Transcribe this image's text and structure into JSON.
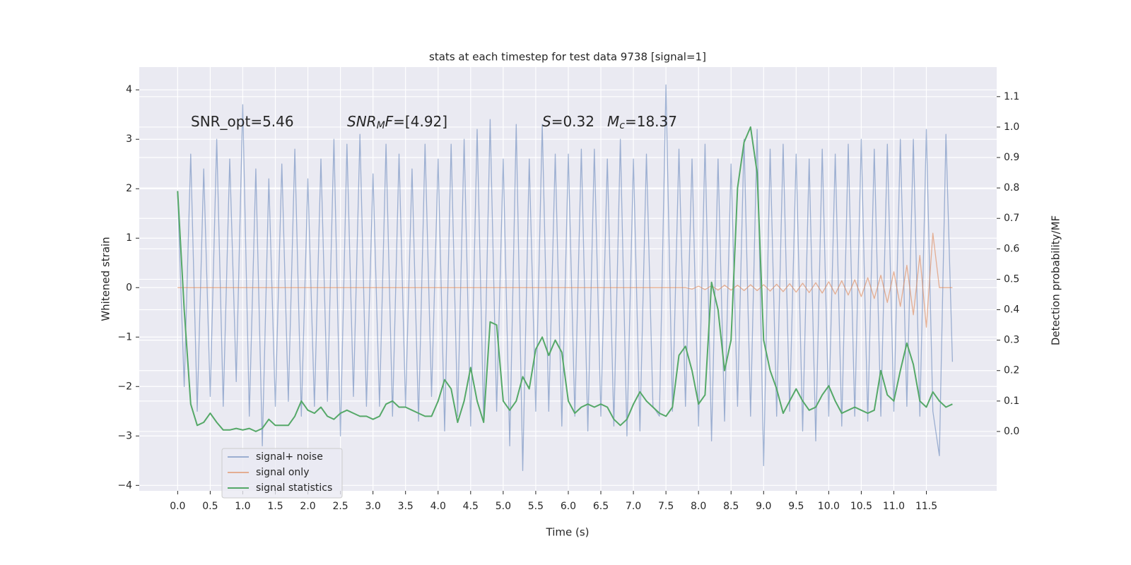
{
  "chart_data": {
    "type": "line",
    "title": "stats at each timestep for test data 9738 [signal=1]",
    "xlabel": "Time (s)",
    "ylabel": "Whitened strain",
    "y2label": "Detection probability/MF",
    "annotations": [
      [
        {
          "text": "SNR_opt=5.46",
          "style": "normal"
        }
      ],
      [
        {
          "text": "SNR",
          "style": "italic"
        },
        {
          "text": "M",
          "style": "sub"
        },
        {
          "text": "F",
          "style": "italic"
        },
        {
          "text": "=[4.92]",
          "style": "normal"
        }
      ],
      [
        {
          "text": "S",
          "style": "italic"
        },
        {
          "text": "=0.32",
          "style": "normal"
        }
      ],
      [
        {
          "text": "M",
          "style": "italic"
        },
        {
          "text": "c",
          "style": "sub"
        },
        {
          "text": "=18.37",
          "style": "normal"
        }
      ]
    ],
    "grid": true,
    "legend": "lower left",
    "xlim": [
      -0.59,
      12.58
    ],
    "ylim": [
      -4.11,
      4.46
    ],
    "y2lim": [
      -0.195,
      1.197
    ],
    "xticks": [
      {
        "value": 0,
        "label": "0.0"
      },
      0.5,
      {
        "value": 1,
        "label": "1.0"
      },
      1.5,
      {
        "value": 2,
        "label": "2.0"
      },
      2.5,
      {
        "value": 3,
        "label": "3.0"
      },
      3.5,
      {
        "value": 4,
        "label": "4.0"
      },
      4.5,
      {
        "value": 5,
        "label": "5.0"
      },
      5.5,
      {
        "value": 6,
        "label": "6.0"
      },
      6.5,
      {
        "value": 7,
        "label": "7.0"
      },
      7.5,
      {
        "value": 8,
        "label": "8.0"
      },
      8.5,
      {
        "value": 9,
        "label": "9.0"
      },
      9.5,
      {
        "value": 10,
        "label": "10.0"
      },
      10.5,
      {
        "value": 11,
        "label": "11.0"
      },
      11.5
    ],
    "yticks": [
      {
        "value": -4,
        "label": "−4"
      },
      {
        "value": -3,
        "label": "−3"
      },
      {
        "value": -2,
        "label": "−2"
      },
      {
        "value": -1,
        "label": "−1"
      },
      0,
      1,
      2,
      3,
      4
    ],
    "y2ticks": [
      {
        "value": 0,
        "label": "0.0"
      },
      0.1,
      0.2,
      0.3,
      0.4,
      0.5,
      0.6,
      0.7,
      0.8,
      0.9,
      {
        "value": 1,
        "label": "1.0"
      },
      1.1
    ],
    "x": [
      0,
      0.1,
      0.2,
      0.3,
      0.4,
      0.5,
      0.6,
      0.7,
      0.8,
      0.9,
      1,
      1.1,
      1.2,
      1.3,
      1.4,
      1.5,
      1.6,
      1.7,
      1.8,
      1.9,
      2,
      2.1,
      2.2,
      2.3,
      2.4,
      2.5,
      2.6,
      2.7,
      2.8,
      2.9,
      3,
      3.1,
      3.2,
      3.3,
      3.4,
      3.5,
      3.6,
      3.7,
      3.8,
      3.9,
      4,
      4.1,
      4.2,
      4.3,
      4.4,
      4.5,
      4.6,
      4.7,
      4.8,
      4.9,
      5,
      5.1,
      5.2,
      5.3,
      5.4,
      5.5,
      5.6,
      5.7,
      5.8,
      5.9,
      6,
      6.1,
      6.2,
      6.3,
      6.4,
      6.5,
      6.6,
      6.7,
      6.8,
      6.9,
      7,
      7.1,
      7.2,
      7.3,
      7.4,
      7.5,
      7.6,
      7.7,
      7.8,
      7.9,
      8,
      8.1,
      8.2,
      8.3,
      8.4,
      8.5,
      8.6,
      8.7,
      8.8,
      8.9,
      9,
      9.1,
      9.2,
      9.3,
      9.4,
      9.5,
      9.6,
      9.7,
      9.8,
      9.9,
      10,
      10.1,
      10.2,
      10.3,
      10.4,
      10.5,
      10.6,
      10.7,
      10.8,
      10.9,
      11,
      11.1,
      11.2,
      11.3,
      11.4,
      11.5,
      11.6,
      11.7,
      11.8,
      11.9
    ],
    "series": [
      {
        "name": "signal+ noise",
        "color": "#4c72b0",
        "opacity": 0.5,
        "values": [
          1.9,
          -2.0,
          2.7,
          -2.5,
          2.4,
          -2.2,
          3.0,
          -2.4,
          2.6,
          -1.9,
          3.7,
          -2.6,
          2.4,
          -3.2,
          2.2,
          -2.4,
          2.5,
          -2.3,
          2.8,
          -2.6,
          2.2,
          -2.4,
          2.6,
          -2.3,
          3.0,
          -3.0,
          2.9,
          -2.2,
          3.1,
          -2.4,
          2.3,
          -2.4,
          2.9,
          -2.6,
          2.7,
          -2.4,
          2.4,
          -2.7,
          2.9,
          -2.2,
          2.6,
          -2.9,
          2.9,
          -2.6,
          3.0,
          -2.8,
          3.2,
          -2.7,
          3.4,
          -2.5,
          2.6,
          -3.2,
          3.3,
          -3.7,
          2.6,
          -2.5,
          3.3,
          -2.5,
          2.7,
          -2.8,
          2.7,
          -2.6,
          2.8,
          -2.9,
          2.8,
          -2.6,
          2.6,
          -2.8,
          3.0,
          -3.0,
          2.6,
          -2.9,
          2.7,
          -2.4,
          -2.6,
          4.1,
          -2.5,
          2.8,
          -2.4,
          2.6,
          -2.8,
          2.9,
          -3.1,
          2.6,
          -2.7,
          2.5,
          -2.4,
          3.0,
          -2.6,
          3.2,
          -3.6,
          2.8,
          -2.6,
          2.9,
          -2.5,
          2.7,
          -2.9,
          2.6,
          -3.1,
          2.8,
          -2.6,
          2.7,
          -2.8,
          2.9,
          -2.6,
          3.0,
          -2.7,
          2.8,
          -2.6,
          2.9,
          -2.5,
          3.0,
          -2.4,
          3.0,
          -2.6,
          3.2,
          -2.5,
          -3.4,
          3.1,
          -1.5
        ]
      },
      {
        "name": "signal only",
        "color": "#dd8452",
        "opacity": 0.6,
        "values": [
          0,
          0,
          0,
          0,
          0,
          0,
          0,
          0,
          0,
          0,
          0,
          0,
          0,
          0,
          0,
          0,
          0,
          0,
          0,
          0,
          0,
          0,
          0,
          0,
          0,
          0,
          0,
          0,
          0,
          0,
          0,
          0,
          0,
          0,
          0,
          0,
          0,
          0,
          0,
          0,
          0,
          0,
          0,
          0,
          0,
          0,
          0,
          0,
          0,
          0,
          0,
          0,
          0,
          0,
          0,
          0,
          0,
          0,
          0,
          0,
          0,
          0,
          0,
          0,
          0,
          0,
          0,
          0,
          0,
          0,
          0,
          0,
          0,
          0,
          0,
          0,
          0,
          0,
          0,
          -0.03,
          0.03,
          -0.04,
          0.04,
          -0.05,
          0.05,
          -0.05,
          0.05,
          -0.06,
          0.06,
          -0.06,
          0.06,
          -0.07,
          0.07,
          -0.08,
          0.08,
          -0.09,
          0.09,
          -0.1,
          0.1,
          -0.11,
          0.12,
          -0.13,
          0.14,
          -0.15,
          0.16,
          -0.18,
          0.2,
          -0.22,
          0.25,
          -0.3,
          0.32,
          -0.38,
          0.45,
          -0.55,
          0.65,
          -0.8,
          1.1,
          0,
          0,
          0
        ]
      },
      {
        "name": "signal statistics",
        "color": "#55a868",
        "opacity": 1,
        "axis": "y2",
        "values": [
          0.79,
          0.4,
          0.09,
          0.02,
          0.03,
          0.06,
          0.03,
          0.005,
          0.005,
          0.01,
          0.005,
          0.01,
          0,
          0.01,
          0.04,
          0.02,
          0.02,
          0.02,
          0.05,
          0.1,
          0.07,
          0.06,
          0.08,
          0.05,
          0.04,
          0.06,
          0.07,
          0.06,
          0.05,
          0.05,
          0.04,
          0.05,
          0.09,
          0.1,
          0.08,
          0.08,
          0.07,
          0.06,
          0.05,
          0.05,
          0.1,
          0.17,
          0.14,
          0.03,
          0.1,
          0.21,
          0.1,
          0.03,
          0.36,
          0.35,
          0.1,
          0.07,
          0.1,
          0.18,
          0.14,
          0.27,
          0.31,
          0.25,
          0.3,
          0.26,
          0.1,
          0.06,
          0.08,
          0.09,
          0.08,
          0.09,
          0.08,
          0.04,
          0.02,
          0.04,
          0.09,
          0.13,
          0.1,
          0.08,
          0.06,
          0.05,
          0.08,
          0.25,
          0.28,
          0.2,
          0.09,
          0.12,
          0.49,
          0.4,
          0.2,
          0.3,
          0.8,
          0.95,
          1.0,
          0.85,
          0.3,
          0.2,
          0.14,
          0.06,
          0.1,
          0.14,
          0.1,
          0.07,
          0.08,
          0.12,
          0.15,
          0.1,
          0.06,
          0.07,
          0.08,
          0.07,
          0.06,
          0.07,
          0.2,
          0.12,
          0.1,
          0.2,
          0.29,
          0.22,
          0.1,
          0.08,
          0.13,
          0.1,
          0.08,
          0.09
        ]
      }
    ]
  }
}
